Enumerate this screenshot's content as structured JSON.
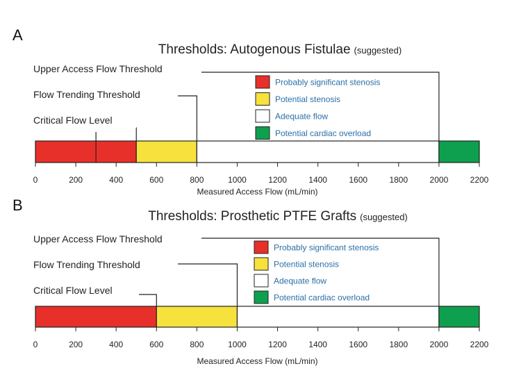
{
  "chart_data": [
    {
      "type": "bar",
      "orientation": "horizontal-range",
      "panel": "A",
      "title": "Thresholds: Autogenous Fistulae",
      "subtitle": "(suggested)",
      "xlabel": "Measured Access Flow (mL/min)",
      "xlim": [
        0,
        2200
      ],
      "ticks": [
        0,
        200,
        400,
        600,
        800,
        1000,
        1200,
        1400,
        1600,
        1800,
        2000,
        2200
      ],
      "segments": [
        {
          "label": "Probably significant stenosis",
          "start": 0,
          "end": 500,
          "color": "#e8302a"
        },
        {
          "label": "Potential stenosis",
          "start": 500,
          "end": 800,
          "color": "#f7e13c"
        },
        {
          "label": "Adequate flow",
          "start": 800,
          "end": 2000,
          "color": "#ffffff"
        },
        {
          "label": "Potential cardiac overload",
          "start": 2000,
          "end": 2200,
          "color": "#0ea04e"
        }
      ],
      "interior_marks": [
        300
      ],
      "thresholds": [
        {
          "label": "Upper Access Flow Threshold",
          "value": 2000
        },
        {
          "label": "Flow Trending Threshold",
          "value": 800
        },
        {
          "label": "Critical Flow Level",
          "value": 500
        }
      ],
      "legend": [
        "Probably significant stenosis",
        "Potential stenosis",
        "Adequate flow",
        "Potential cardiac overload"
      ]
    },
    {
      "type": "bar",
      "orientation": "horizontal-range",
      "panel": "B",
      "title": "Thresholds: Prosthetic PTFE Grafts",
      "subtitle": "(suggested)",
      "xlabel": "Measured Access Flow (mL/min)",
      "xlim": [
        0,
        2200
      ],
      "ticks": [
        0,
        200,
        400,
        600,
        800,
        1000,
        1200,
        1400,
        1600,
        1800,
        2000,
        2200
      ],
      "segments": [
        {
          "label": "Probably significant stenosis",
          "start": 0,
          "end": 600,
          "color": "#e8302a"
        },
        {
          "label": "Potential stenosis",
          "start": 600,
          "end": 1000,
          "color": "#f7e13c"
        },
        {
          "label": "Adequate flow",
          "start": 1000,
          "end": 2000,
          "color": "#ffffff"
        },
        {
          "label": "Potential cardiac overload",
          "start": 2000,
          "end": 2200,
          "color": "#0ea04e"
        }
      ],
      "interior_marks": [],
      "thresholds": [
        {
          "label": "Upper Access Flow Threshold",
          "value": 2000
        },
        {
          "label": "Flow Trending Threshold",
          "value": 1000
        },
        {
          "label": "Critical Flow Level",
          "value": 600
        }
      ],
      "legend": [
        "Probably significant stenosis",
        "Potential stenosis",
        "Adequate flow",
        "Potential cardiac overload"
      ]
    }
  ]
}
